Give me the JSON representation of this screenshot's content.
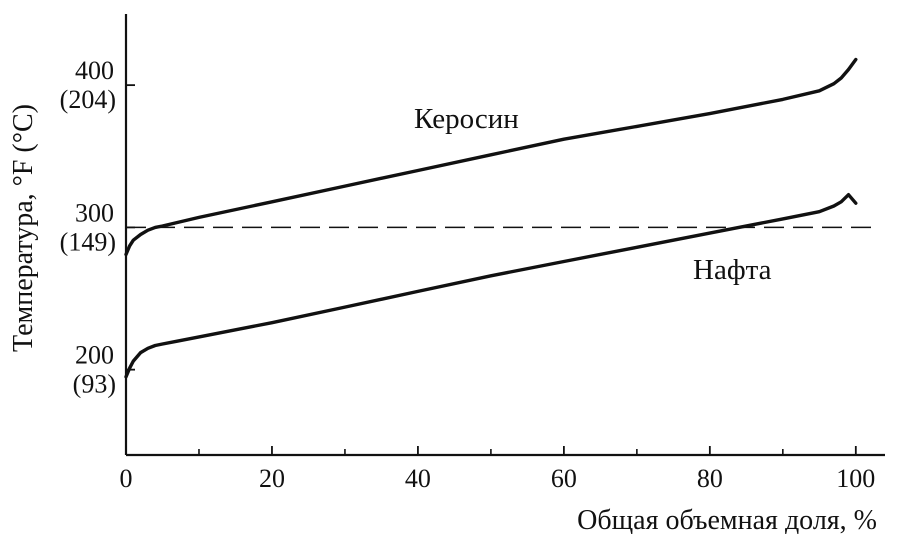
{
  "chart_data": {
    "type": "line",
    "title": "",
    "xlabel": "Общая объемная доля, %",
    "ylabel": "Температура, °F (°C)",
    "xlim": [
      0,
      104
    ],
    "ylim": [
      140,
      450
    ],
    "grid": false,
    "legend": "none",
    "x_ticks": [
      {
        "value": 0,
        "label": "0"
      },
      {
        "value": 20,
        "label": "20"
      },
      {
        "value": 40,
        "label": "40"
      },
      {
        "value": 60,
        "label": "60"
      },
      {
        "value": 80,
        "label": "80"
      },
      {
        "value": 100,
        "label": "100"
      }
    ],
    "x_minor_ticks": [
      10,
      30,
      50,
      70,
      90
    ],
    "y_ticks": [
      {
        "value": 400,
        "label": "400",
        "sublabel": "(204)"
      },
      {
        "value": 300,
        "label": "300",
        "sublabel": "(149)"
      },
      {
        "value": 200,
        "label": "200",
        "sublabel": "(93)"
      }
    ],
    "reference_line": {
      "y": 300,
      "style": "dashed"
    },
    "series": [
      {
        "name": "Керосин",
        "color": "#111111",
        "x": [
          0,
          0.5,
          1,
          2,
          3,
          4,
          5,
          10,
          20,
          30,
          40,
          50,
          60,
          70,
          80,
          90,
          95,
          97,
          98,
          99,
          100
        ],
        "y": [
          281,
          287,
          291,
          295,
          298,
          300,
          301,
          307,
          318,
          329,
          340,
          351,
          362,
          371,
          380,
          390,
          396,
          401,
          405,
          411,
          418
        ]
      },
      {
        "name": "Нафта",
        "color": "#111111",
        "x": [
          0,
          0.5,
          1,
          2,
          3,
          4,
          5,
          7,
          10,
          20,
          30,
          40,
          50,
          60,
          70,
          80,
          90,
          95,
          97,
          98,
          99,
          100
        ],
        "y": [
          195,
          201,
          206,
          212,
          215,
          217,
          218,
          220,
          223,
          233,
          244,
          255,
          266,
          276,
          286,
          296,
          306,
          311,
          315,
          318,
          323,
          317
        ]
      }
    ]
  }
}
